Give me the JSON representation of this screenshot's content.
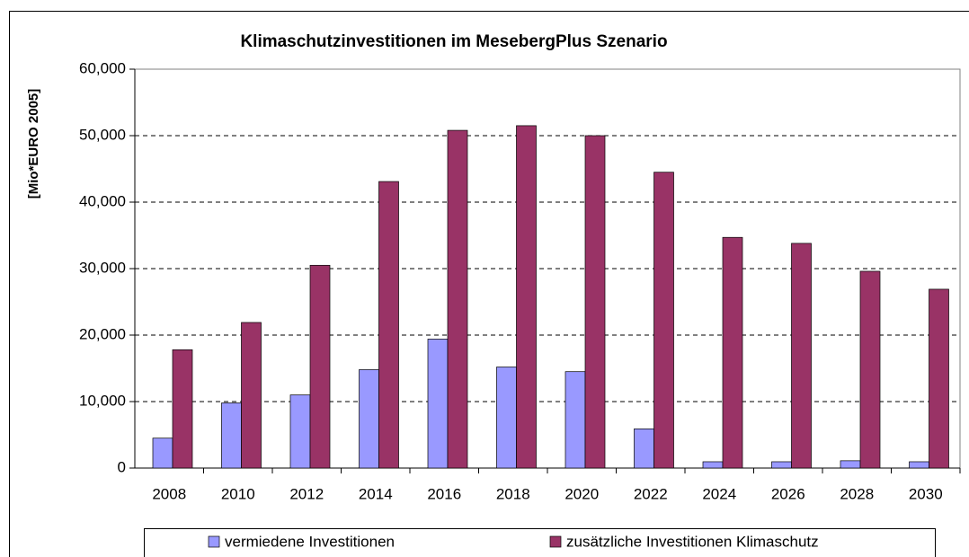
{
  "chart_data": {
    "type": "bar",
    "title": "Klimaschutzinvestitionen im MesebergPlus Szenario",
    "y_label": "[Mio*EURO 2005]",
    "categories": [
      "2008",
      "2010",
      "2012",
      "2014",
      "2016",
      "2018",
      "2020",
      "2022",
      "2024",
      "2026",
      "2028",
      "2030"
    ],
    "series": [
      {
        "name": "vermiedene Investitionen",
        "color": "#9999ff",
        "values": [
          4500,
          9800,
          11000,
          14800,
          19400,
          15200,
          14500,
          5900,
          950,
          950,
          1100,
          950
        ]
      },
      {
        "name": "zusätzliche Investitionen Klimaschutz",
        "color": "#993366",
        "values": [
          17800,
          21900,
          30500,
          43100,
          50800,
          51500,
          50000,
          44500,
          34700,
          33800,
          29600,
          26900
        ]
      }
    ],
    "ylim": [
      0,
      60000
    ],
    "yticks": [
      0,
      {
        "value": 10000,
        "label": "10,000"
      },
      {
        "value": 20000,
        "label": "20,000"
      },
      {
        "value": 30000,
        "label": "30,000"
      },
      {
        "value": 40000,
        "label": "40,000"
      },
      {
        "value": 50000,
        "label": "50,000"
      },
      {
        "value": 60000,
        "label": "60,000"
      }
    ],
    "grid": true,
    "legend": "bottom"
  }
}
